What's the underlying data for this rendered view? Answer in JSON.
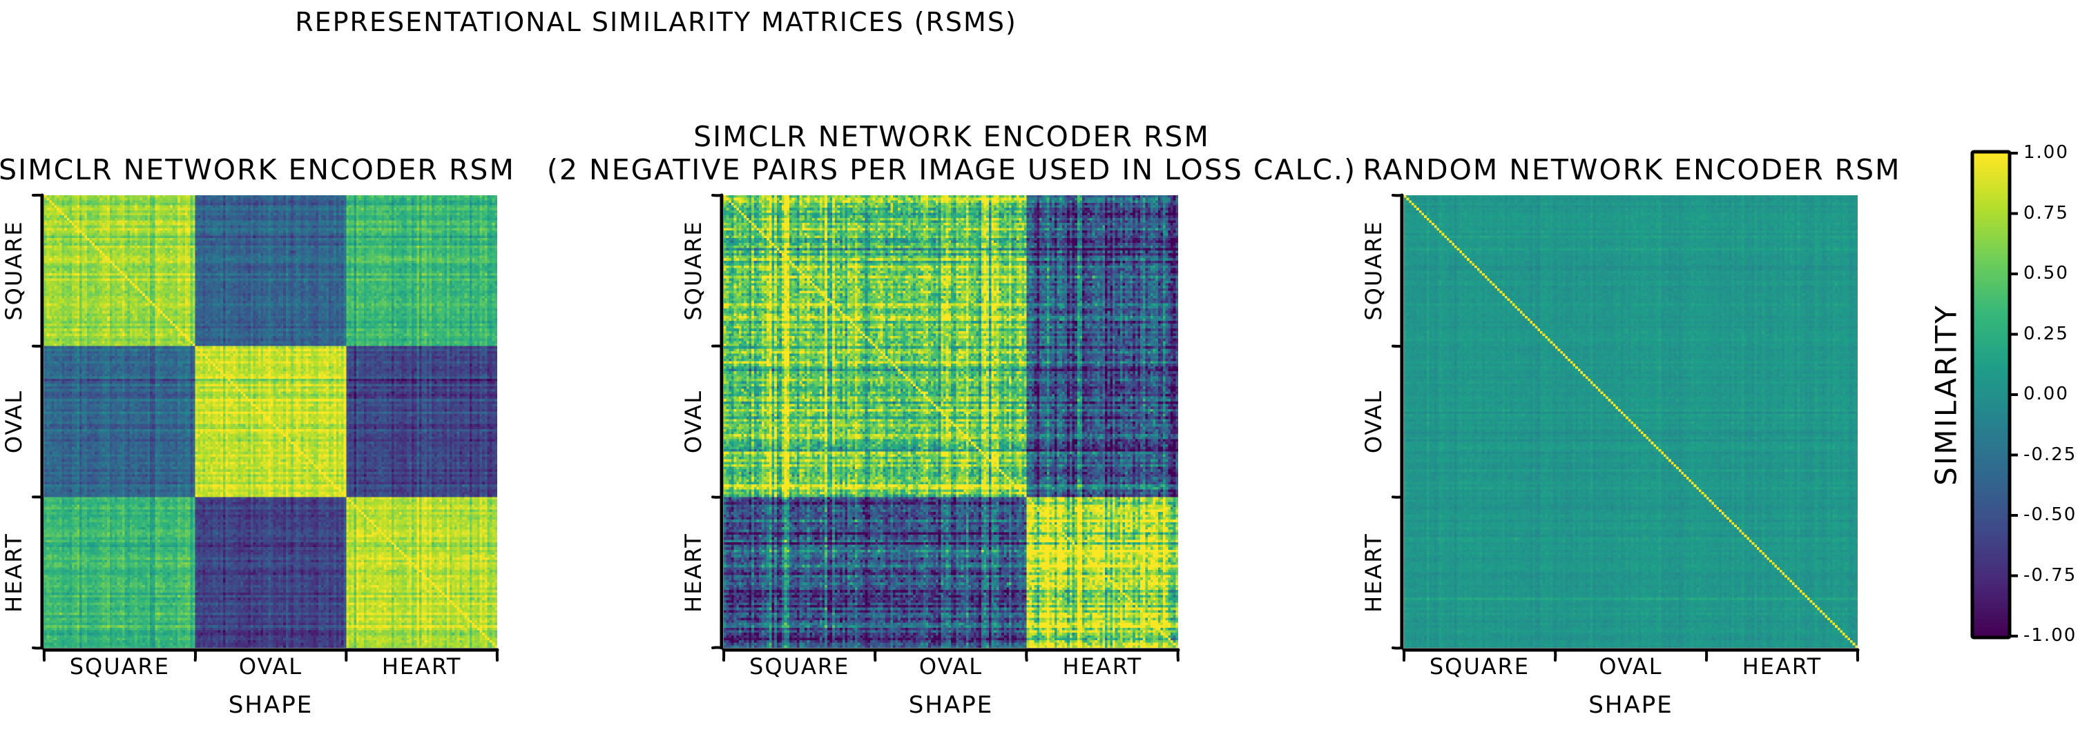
{
  "title": "Representational Similarity Matrices (RSMs)",
  "chart_data": [
    {
      "type": "heatmap",
      "title_lines": [
        "SimCLR network encoder RSM"
      ],
      "xlabel": "Shape",
      "categories": [
        "Square",
        "Oval",
        "Heart"
      ],
      "block_means": [
        [
          0.72,
          -0.35,
          0.35
        ],
        [
          -0.35,
          0.82,
          -0.6
        ],
        [
          0.35,
          -0.6,
          0.78
        ]
      ],
      "noise": 0.18,
      "diagonal": 1.0,
      "colormap": "viridis",
      "vmin": -1.0,
      "vmax": 1.0
    },
    {
      "type": "heatmap",
      "title_lines": [
        "SimCLR network encoder RSM",
        "(2 negative pairs per image used in loss calc.)"
      ],
      "xlabel": "Shape",
      "categories": [
        "Square",
        "Oval",
        "Heart"
      ],
      "block_means": [
        [
          0.55,
          0.55,
          -0.45
        ],
        [
          0.55,
          0.55,
          -0.45
        ],
        [
          -0.45,
          -0.45,
          0.75
        ]
      ],
      "noise": 0.5,
      "diagonal": 1.0,
      "colormap": "viridis",
      "vmin": -1.0,
      "vmax": 1.0
    },
    {
      "type": "heatmap",
      "title_lines": [
        "Random network encoder RSM"
      ],
      "xlabel": "Shape",
      "categories": [
        "Square",
        "Oval",
        "Heart"
      ],
      "block_means": [
        [
          0.05,
          0.05,
          0.05
        ],
        [
          0.05,
          0.05,
          0.05
        ],
        [
          0.05,
          0.05,
          0.05
        ]
      ],
      "noise": 0.07,
      "diagonal": 1.0,
      "colormap": "viridis",
      "vmin": -1.0,
      "vmax": 1.0
    }
  ],
  "colorbar": {
    "label": "Similarity",
    "ticks": [
      "1.00",
      "0.75",
      "0.50",
      "0.25",
      "0.00",
      "-0.25",
      "-0.50",
      "-0.75",
      "-1.00"
    ],
    "vmin": -1.0,
    "vmax": 1.0,
    "colormap": "viridis"
  }
}
